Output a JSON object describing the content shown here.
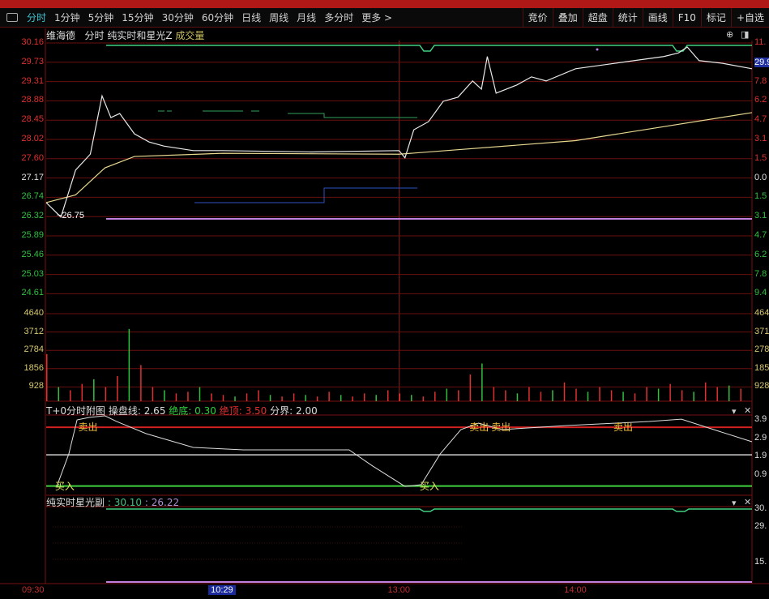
{
  "toolbar": {
    "periods": [
      "分时",
      "1分钟",
      "5分钟",
      "15分钟",
      "30分钟",
      "60分钟",
      "日线",
      "周线",
      "月线",
      "多分时",
      "更多 >"
    ],
    "active": "分时",
    "tools": [
      "竞价",
      "叠加",
      "超盘",
      "统计",
      "画线",
      "F10",
      "标记",
      "+自选"
    ]
  },
  "info": {
    "stock": "维海德",
    "mode": "分时",
    "indicator": "纯实时和星光Z",
    "volume_label": "成交量"
  },
  "colors": {
    "up": "#e03030",
    "down": "#30c040",
    "flat": "#e0e0e0",
    "price_line": "#e8e8e8",
    "avg_line": "#e8d890",
    "grid": "#6a1010",
    "accent_green": "#40d080",
    "purple": "#c080e0",
    "volume_axis": "#d8c870"
  },
  "price_axis": {
    "left_labels": [
      "30.16",
      "29.73",
      "29.31",
      "28.88",
      "28.45",
      "28.02",
      "27.60",
      "27.17",
      "26.74",
      "26.32",
      "25.89",
      "25.46",
      "25.03",
      "24.61"
    ],
    "prev_close": "27.17",
    "right_labels": [
      "11.",
      "29.9",
      "7.8",
      "6.2",
      "4.7",
      "3.1",
      "1.5",
      "0.0",
      "1.5",
      "3.1",
      "4.7",
      "6.2",
      "7.8",
      "9.4"
    ],
    "low_marker": "26.75"
  },
  "volume_axis": {
    "left_labels": [
      "4640",
      "3712",
      "2784",
      "1856",
      "928"
    ],
    "right_labels": [
      "464",
      "371",
      "278",
      "185",
      "928"
    ]
  },
  "chart_data": {
    "type": "line",
    "x_unit": "minutes since 09:30 (trading time)",
    "price": {
      "minutes": [
        0,
        5,
        10,
        15,
        19,
        22,
        25,
        30,
        35,
        40,
        50,
        60,
        90,
        120,
        122,
        125,
        130,
        135,
        140,
        145,
        148,
        150,
        153,
        160,
        165,
        170,
        180,
        190,
        200,
        210,
        215,
        218,
        222,
        230,
        240
      ],
      "values": [
        26.63,
        26.31,
        27.35,
        27.7,
        28.99,
        28.51,
        28.6,
        28.15,
        27.97,
        27.88,
        27.78,
        27.78,
        27.75,
        27.78,
        27.62,
        28.24,
        28.42,
        28.87,
        28.96,
        29.32,
        29.14,
        29.86,
        29.05,
        29.23,
        29.41,
        29.32,
        29.59,
        29.68,
        29.77,
        29.86,
        29.94,
        30.07,
        29.77,
        29.71,
        29.59
      ]
    },
    "average": {
      "minutes": [
        0,
        10,
        20,
        30,
        60,
        120,
        140,
        180,
        240
      ],
      "values": [
        26.63,
        26.8,
        27.4,
        27.65,
        27.72,
        27.7,
        27.8,
        28.0,
        28.62
      ]
    },
    "volume": [
      3000,
      900,
      700,
      1100,
      1400,
      900,
      1600,
      4600,
      2300,
      900,
      700,
      500,
      600,
      900,
      500,
      400,
      300,
      500,
      700,
      400,
      300,
      500,
      400,
      300,
      600,
      400,
      300,
      500,
      400,
      700,
      500,
      400,
      300,
      600,
      800,
      700,
      1700,
      2400,
      900,
      700,
      500,
      900,
      600,
      700,
      1200,
      800,
      600,
      900,
      700,
      600,
      500,
      900,
      800,
      1100,
      700,
      600,
      1200,
      900,
      1000,
      800
    ],
    "ylim": [
      24.61,
      30.16
    ]
  },
  "t0_panel": {
    "title": "T+0分时附图",
    "line_label": "操盘线:",
    "line_value": "2.65",
    "bottom_label": "绝底:",
    "bottom_value": "0.30",
    "top_label": "绝顶:",
    "top_value": "3.50",
    "split_label": "分界:",
    "split_value": "2.00",
    "right_labels": [
      "3.9",
      "2.9",
      "1.9",
      "0.9"
    ],
    "series": {
      "minutes": [
        3.6,
        7.7,
        10.5,
        14.6,
        20,
        24,
        34,
        50,
        67,
        103,
        111,
        122,
        127.5,
        134,
        141,
        147,
        155,
        177,
        205,
        216,
        227,
        240
      ],
      "values": [
        0.28,
        2.05,
        3.9,
        4.03,
        4.12,
        3.81,
        3.15,
        2.4,
        2.27,
        2.27,
        1.39,
        0.28,
        0.37,
        2.05,
        3.37,
        3.72,
        3.37,
        3.59,
        3.81,
        3.94,
        3.37,
        2.71
      ]
    },
    "signals": [
      {
        "label": "卖出",
        "minute": 12,
        "type": "sell"
      },
      {
        "label": "卖出",
        "minute": 145,
        "type": "sell"
      },
      {
        "label": "卖出",
        "minute": 148,
        "type": "sell"
      },
      {
        "label": "卖出",
        "minute": 194,
        "type": "sell"
      },
      {
        "label": "买入",
        "minute": 3,
        "type": "buy"
      },
      {
        "label": "买入",
        "minute": 127,
        "type": "buy"
      }
    ]
  },
  "star_panel": {
    "title": "纯实时星光副",
    "value1": ": 30.10",
    "value2": ": 26.22",
    "right_labels": [
      "30.",
      "29.",
      "",
      "15."
    ]
  },
  "time_axis": [
    "09:30",
    "10:29",
    "13:00",
    "14:00"
  ],
  "cursor_time": "10:29"
}
